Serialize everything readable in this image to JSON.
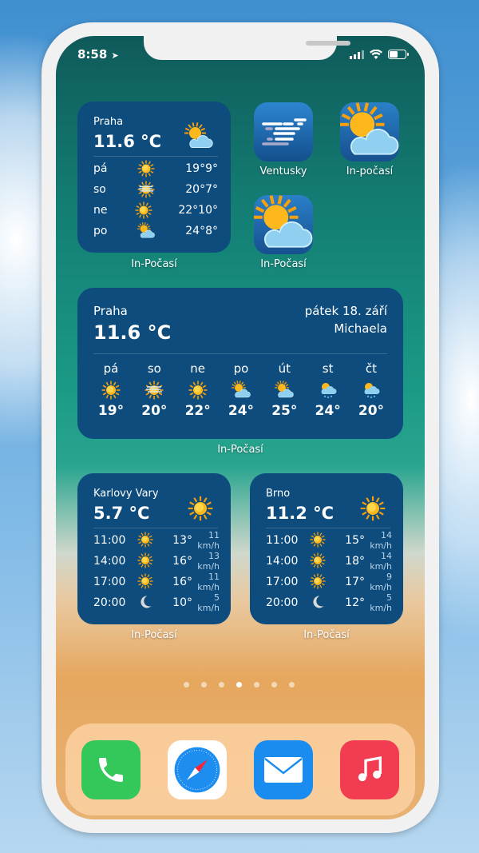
{
  "status": {
    "time": "8:58"
  },
  "small_widget": {
    "city": "Praha",
    "temp": "11.6 °C",
    "icon": "partly-cloudy-icon",
    "rows": [
      {
        "day": "pá",
        "icon": "sun",
        "hi": "19°",
        "lo": "9°"
      },
      {
        "day": "so",
        "icon": "fog-sun",
        "hi": "20°",
        "lo": "7°"
      },
      {
        "day": "ne",
        "icon": "sun",
        "hi": "22°",
        "lo": "10°"
      },
      {
        "day": "po",
        "icon": "partly-cloudy",
        "hi": "24°",
        "lo": "8°"
      }
    ],
    "label": "In-Počasí"
  },
  "apps": [
    {
      "name": "Ventusky"
    },
    {
      "name": "In-počasí"
    },
    {
      "name": "In-Počasí"
    }
  ],
  "wide_widget": {
    "city": "Praha",
    "temp": "11.6 °C",
    "date": "pátek 18. září",
    "nameday": "Michaela",
    "label": "In-Počasí",
    "days": [
      {
        "day": "pá",
        "icon": "sun",
        "t": "19°"
      },
      {
        "day": "so",
        "icon": "fog-sun",
        "t": "20°"
      },
      {
        "day": "ne",
        "icon": "sun",
        "t": "22°"
      },
      {
        "day": "po",
        "icon": "partly-cloudy",
        "t": "24°"
      },
      {
        "day": "út",
        "icon": "partly-cloudy",
        "t": "25°"
      },
      {
        "day": "st",
        "icon": "rain",
        "t": "24°"
      },
      {
        "day": "čt",
        "icon": "rain",
        "t": "20°"
      }
    ]
  },
  "hourly_widgets": [
    {
      "city": "Karlovy Vary",
      "temp": "5.7 °C",
      "label": "In-Počasí",
      "rows": [
        {
          "time": "11:00",
          "icon": "sun",
          "t": "13°",
          "wind": "11 km/h"
        },
        {
          "time": "14:00",
          "icon": "sun",
          "t": "16°",
          "wind": "13 km/h"
        },
        {
          "time": "17:00",
          "icon": "sun",
          "t": "16°",
          "wind": "11 km/h"
        },
        {
          "time": "20:00",
          "icon": "moon",
          "t": "10°",
          "wind": "5 km/h"
        }
      ]
    },
    {
      "city": "Brno",
      "temp": "11.2 °C",
      "label": "In-Počasí",
      "rows": [
        {
          "time": "11:00",
          "icon": "sun",
          "t": "15°",
          "wind": "14 km/h"
        },
        {
          "time": "14:00",
          "icon": "sun",
          "t": "18°",
          "wind": "14 km/h"
        },
        {
          "time": "17:00",
          "icon": "sun",
          "t": "17°",
          "wind": "9 km/h"
        },
        {
          "time": "20:00",
          "icon": "moon",
          "t": "12°",
          "wind": "5 km/h"
        }
      ]
    }
  ],
  "page_dots": {
    "count": 7,
    "active": 4
  },
  "dock": [
    {
      "icon": "phone-icon",
      "color": "#34c759"
    },
    {
      "icon": "safari-icon",
      "color": "#ffffff"
    },
    {
      "icon": "mail-icon",
      "color": "#1a8cf0"
    },
    {
      "icon": "music-icon",
      "color": "#f23c52"
    }
  ]
}
